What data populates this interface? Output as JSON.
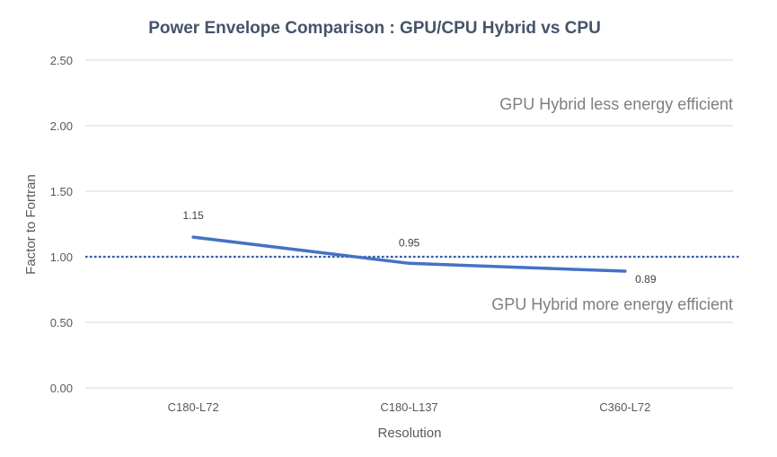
{
  "chart_data": {
    "type": "line",
    "title": "Power Envelope Comparison : GPU/CPU Hybrid vs CPU",
    "xlabel": "Resolution",
    "ylabel": "Factor to Fortran",
    "categories": [
      "C180-L72",
      "C180-L137",
      "C360-L72"
    ],
    "series": [
      {
        "values": [
          1.15,
          0.95,
          0.89
        ],
        "color": "#4472c4"
      }
    ],
    "data_labels": [
      "1.15",
      "0.95",
      "0.89"
    ],
    "ylim": [
      0,
      2.5
    ],
    "yticks": [
      0,
      0.5,
      1.0,
      1.5,
      2.0,
      2.5
    ],
    "ytick_labels": [
      "0.00",
      "0.50",
      "1.00",
      "1.50",
      "2.00",
      "2.50"
    ],
    "grid": true,
    "reference_line": {
      "value": 1.0,
      "style": "dotted",
      "color": "#2e5aa8"
    },
    "annotations": {
      "upper": "GPU Hybrid less energy efficient",
      "lower": "GPU Hybrid more energy efficient"
    }
  }
}
